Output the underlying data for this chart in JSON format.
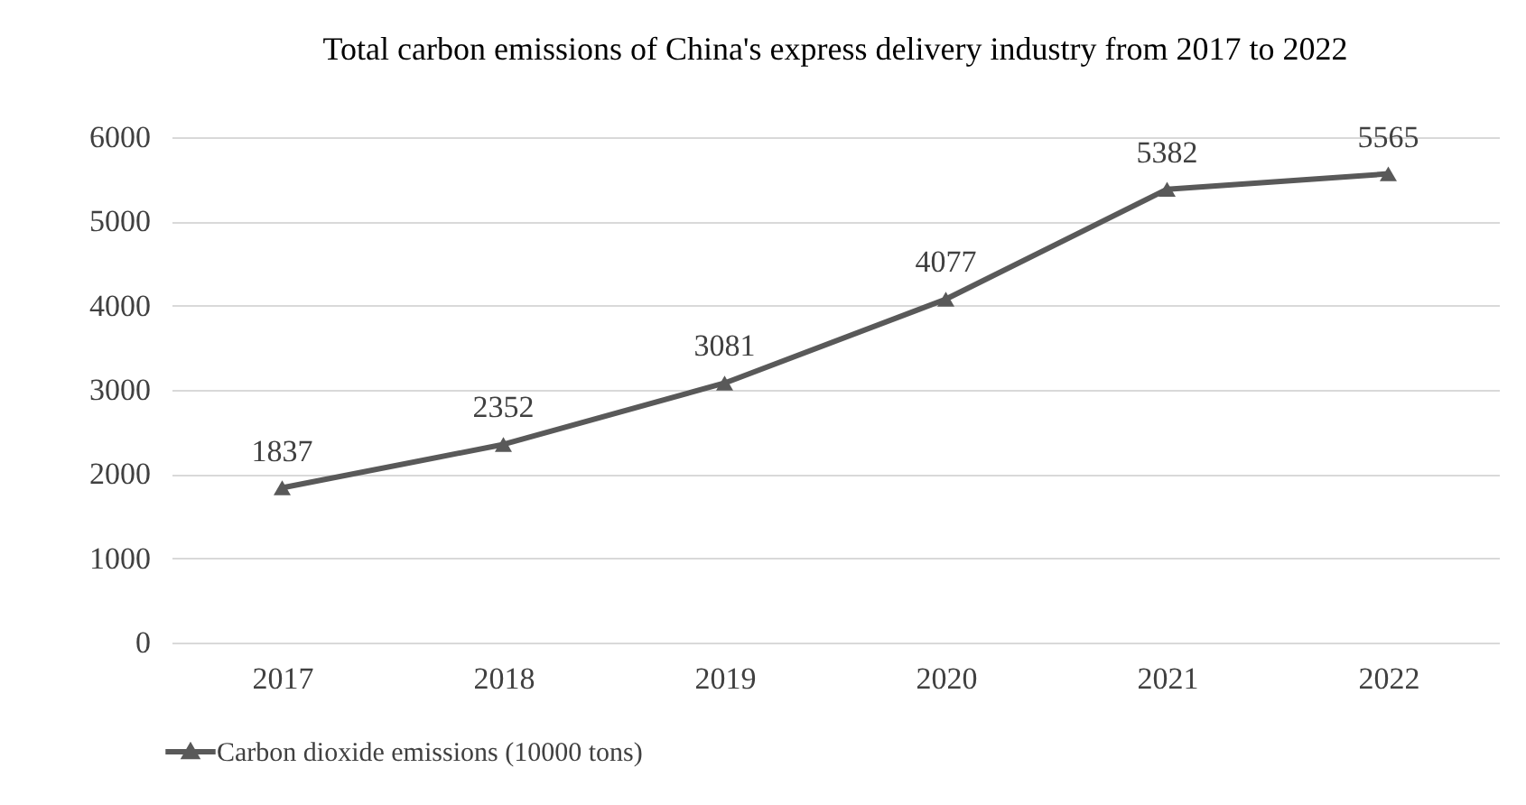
{
  "chart_data": {
    "type": "line",
    "title": "Total carbon emissions of China's express delivery industry from 2017 to 2022",
    "categories": [
      "2017",
      "2018",
      "2019",
      "2020",
      "2021",
      "2022"
    ],
    "series": [
      {
        "name": "Carbon dioxide emissions (10000 tons)",
        "color": "#595959",
        "values": [
          1837,
          2352,
          3081,
          4077,
          5382,
          5565
        ]
      }
    ],
    "ylim": [
      0,
      6000
    ],
    "yticks": [
      0,
      1000,
      2000,
      3000,
      4000,
      5000,
      6000
    ],
    "grid": "y",
    "legend": "bottom",
    "marker": "triangle",
    "data_labels": true
  }
}
